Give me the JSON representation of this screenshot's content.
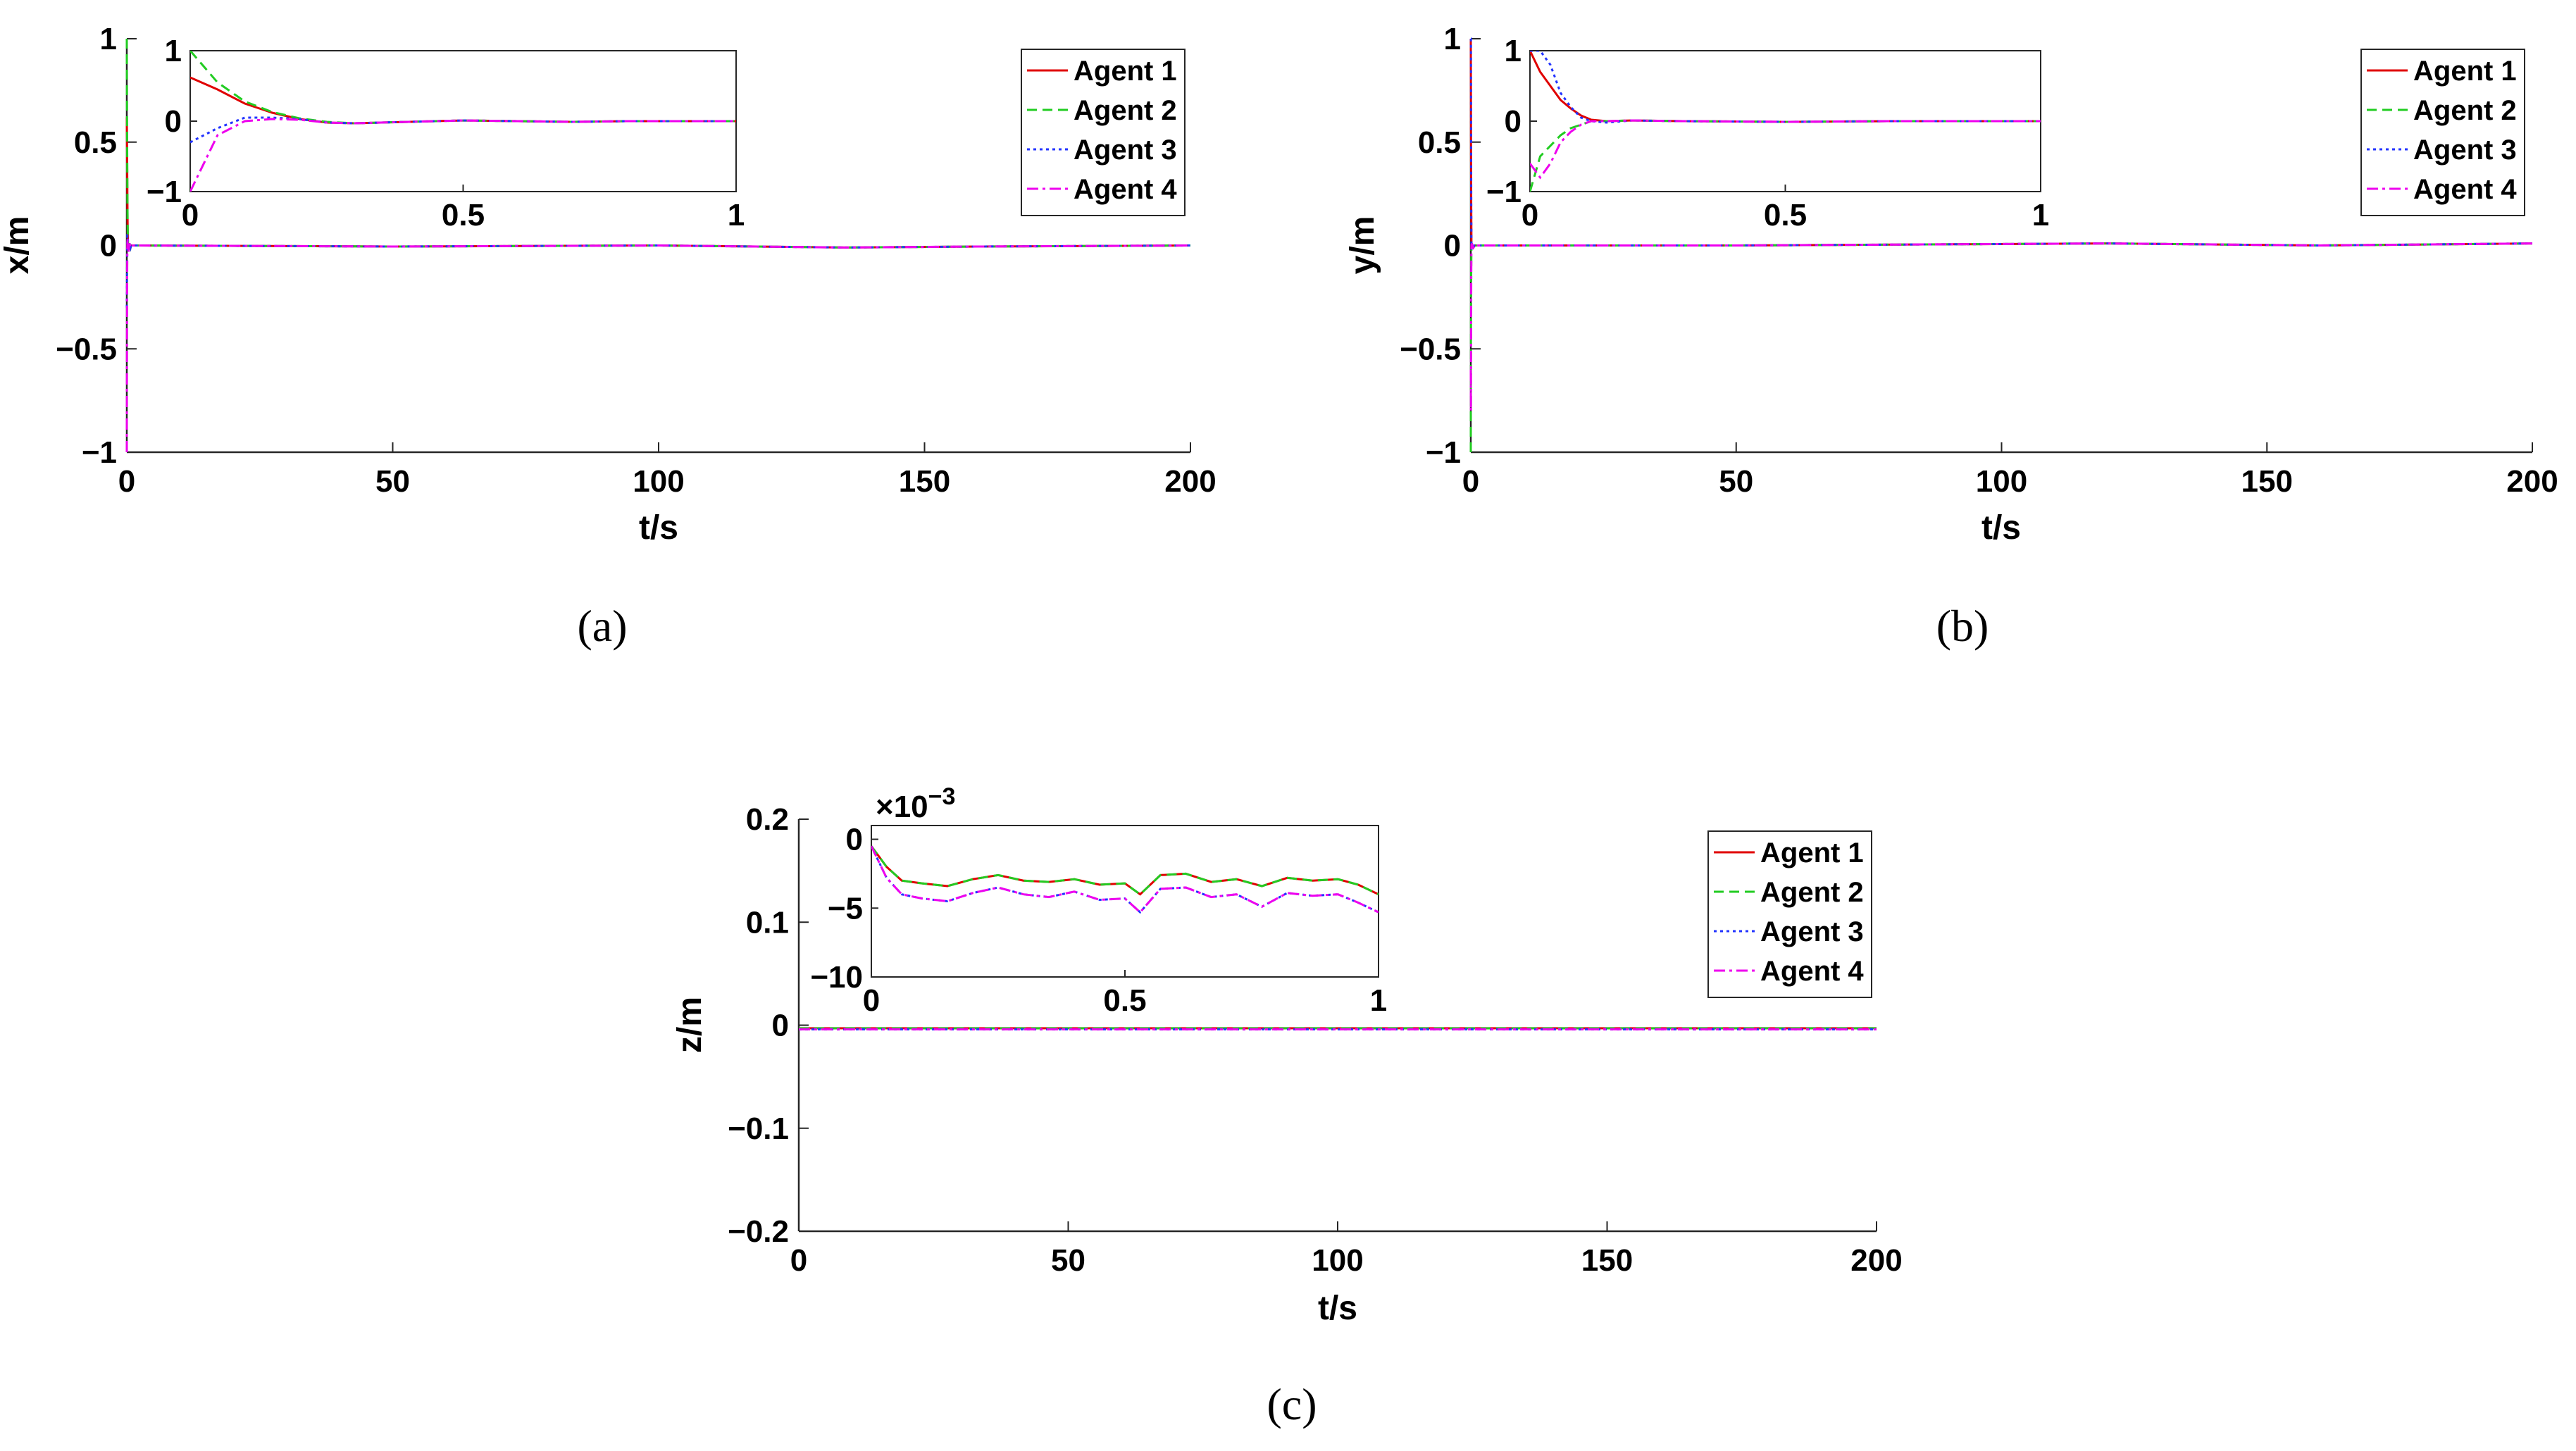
{
  "chart_data": [
    {
      "type": "line",
      "panel": "(a)",
      "ylabel": "x/m",
      "xlabel": "t/s",
      "xlim": [
        0,
        200
      ],
      "ylim": [
        -1,
        1
      ],
      "xticks": [
        "0",
        "50",
        "100",
        "150",
        "200"
      ],
      "yticks": [
        "−1",
        "−0.5",
        "0",
        "0.5",
        "1"
      ],
      "legend": {
        "position": "top-right",
        "entries": [
          "Agent 1",
          "Agent 2",
          "Agent 3",
          "Agent 4"
        ]
      },
      "series": [
        {
          "name": "Agent 1",
          "color": "#e00000",
          "style": "solid",
          "x": [
            0,
            0.05,
            0.1,
            0.15,
            0.2,
            0.25,
            0.3,
            0.4,
            0.5,
            0.6,
            0.7,
            0.8,
            0.9,
            1,
            2,
            50,
            100,
            135,
            160,
            200
          ],
          "y": [
            0.62,
            0.45,
            0.25,
            0.12,
            0.03,
            -0.02,
            -0.03,
            -0.01,
            0.01,
            0.0,
            -0.01,
            0.0,
            0.0,
            0.0,
            0.0,
            -0.005,
            0.0,
            -0.01,
            -0.005,
            0.0
          ]
        },
        {
          "name": "Agent 2",
          "color": "#22cc22",
          "style": "dashed",
          "x": [
            0,
            0.05,
            0.1,
            0.15,
            0.2,
            0.25,
            0.3,
            0.4,
            0.5,
            0.6,
            0.7,
            0.8,
            0.9,
            1,
            2,
            50,
            100,
            135,
            160,
            200
          ],
          "y": [
            1.0,
            0.55,
            0.28,
            0.13,
            0.04,
            -0.01,
            -0.03,
            -0.01,
            0.01,
            0.0,
            -0.01,
            0.0,
            0.0,
            0.0,
            0.0,
            -0.005,
            0.0,
            -0.01,
            -0.005,
            0.0
          ]
        },
        {
          "name": "Agent 3",
          "color": "#2233ff",
          "style": "dotted",
          "x": [
            0,
            0.05,
            0.1,
            0.15,
            0.2,
            0.25,
            0.3,
            0.4,
            0.5,
            0.6,
            0.7,
            0.8,
            0.9,
            1,
            2,
            50,
            100,
            135,
            160,
            200
          ],
          "y": [
            -0.3,
            -0.1,
            0.05,
            0.05,
            0.03,
            -0.02,
            -0.03,
            -0.01,
            0.01,
            0.0,
            -0.01,
            0.0,
            0.0,
            0.0,
            0.0,
            -0.005,
            0.0,
            -0.01,
            -0.005,
            0.0
          ]
        },
        {
          "name": "Agent 4",
          "color": "#ee00ee",
          "style": "dashdot",
          "x": [
            0,
            0.05,
            0.1,
            0.15,
            0.2,
            0.25,
            0.3,
            0.4,
            0.5,
            0.6,
            0.7,
            0.8,
            0.9,
            1,
            2,
            50,
            100,
            135,
            160,
            200
          ],
          "y": [
            -1.0,
            -0.2,
            0.0,
            0.03,
            0.02,
            -0.02,
            -0.03,
            -0.01,
            0.01,
            0.0,
            -0.01,
            0.0,
            0.0,
            0.0,
            0.0,
            -0.005,
            0.0,
            -0.01,
            -0.005,
            0.0
          ]
        }
      ],
      "inset": {
        "xlim": [
          0,
          1
        ],
        "ylim": [
          -1,
          1
        ],
        "xticks": [
          "0",
          "0.5",
          "1"
        ],
        "yticks": [
          "−1",
          "0",
          "1"
        ]
      }
    },
    {
      "type": "line",
      "panel": "(b)",
      "ylabel": "y/m",
      "xlabel": "t/s",
      "xlim": [
        0,
        200
      ],
      "ylim": [
        -1,
        1
      ],
      "xticks": [
        "0",
        "50",
        "100",
        "150",
        "200"
      ],
      "yticks": [
        "−1",
        "−0.5",
        "0",
        "0.5",
        "1"
      ],
      "legend": {
        "position": "top-right",
        "entries": [
          "Agent 1",
          "Agent 2",
          "Agent 3",
          "Agent 4"
        ]
      },
      "series": [
        {
          "name": "Agent 1",
          "color": "#e00000",
          "style": "solid",
          "x": [
            0,
            0.02,
            0.04,
            0.06,
            0.08,
            0.1,
            0.12,
            0.15,
            0.2,
            0.3,
            0.5,
            0.7,
            1,
            2,
            50,
            120,
            160,
            200
          ],
          "y": [
            1.0,
            0.7,
            0.5,
            0.3,
            0.18,
            0.08,
            0.02,
            0.0,
            0.01,
            0.0,
            -0.01,
            0.0,
            0.0,
            0.0,
            0.0,
            0.01,
            0.0,
            0.01
          ]
        },
        {
          "name": "Agent 2",
          "color": "#22cc22",
          "style": "dashed",
          "x": [
            0,
            0.02,
            0.04,
            0.06,
            0.08,
            0.1,
            0.12,
            0.15,
            0.2,
            0.3,
            0.5,
            0.7,
            1,
            2,
            50,
            120,
            160,
            200
          ],
          "y": [
            -1.0,
            -0.5,
            -0.35,
            -0.2,
            -0.1,
            -0.05,
            0.0,
            0.0,
            0.01,
            0.0,
            -0.01,
            0.0,
            0.0,
            0.0,
            0.0,
            0.01,
            0.0,
            0.01
          ]
        },
        {
          "name": "Agent 3",
          "color": "#2233ff",
          "style": "dotted",
          "x": [
            0,
            0.02,
            0.04,
            0.06,
            0.08,
            0.1,
            0.12,
            0.15,
            0.2,
            0.3,
            0.5,
            0.7,
            1,
            2,
            50,
            120,
            160,
            200
          ],
          "y": [
            1.0,
            1.0,
            0.8,
            0.4,
            0.2,
            0.05,
            0.0,
            -0.02,
            0.01,
            0.0,
            -0.01,
            0.0,
            0.0,
            0.0,
            0.0,
            0.01,
            0.0,
            0.01
          ]
        },
        {
          "name": "Agent 4",
          "color": "#ee00ee",
          "style": "dashdot",
          "x": [
            0,
            0.02,
            0.04,
            0.06,
            0.08,
            0.1,
            0.12,
            0.15,
            0.2,
            0.3,
            0.5,
            0.7,
            1,
            2,
            50,
            120,
            160,
            200
          ],
          "y": [
            -0.6,
            -0.8,
            -0.6,
            -0.3,
            -0.15,
            -0.05,
            0.0,
            0.0,
            0.01,
            0.0,
            -0.01,
            0.0,
            0.0,
            0.0,
            0.0,
            0.01,
            0.0,
            0.01
          ]
        }
      ],
      "inset": {
        "xlim": [
          0,
          1
        ],
        "ylim": [
          -1,
          1
        ],
        "xticks": [
          "0",
          "0.5",
          "1"
        ],
        "yticks": [
          "−1",
          "0",
          "1"
        ]
      }
    },
    {
      "type": "line",
      "panel": "(c)",
      "ylabel": "z/m",
      "xlabel": "t/s",
      "xlim": [
        0,
        200
      ],
      "ylim": [
        -0.2,
        0.2
      ],
      "xticks": [
        "0",
        "50",
        "100",
        "150",
        "200"
      ],
      "yticks": [
        "−0.2",
        "−0.1",
        "0",
        "0.1",
        "0.2"
      ],
      "legend": {
        "position": "top-right",
        "entries": [
          "Agent 1",
          "Agent 2",
          "Agent 3",
          "Agent 4"
        ]
      },
      "series": [
        {
          "name": "Agent 1",
          "color": "#e00000",
          "style": "solid",
          "x": [
            0,
            200
          ],
          "y": [
            -0.003,
            -0.003
          ]
        },
        {
          "name": "Agent 2",
          "color": "#22cc22",
          "style": "dashed",
          "x": [
            0,
            200
          ],
          "y": [
            -0.003,
            -0.003
          ]
        },
        {
          "name": "Agent 3",
          "color": "#2233ff",
          "style": "dotted",
          "x": [
            0,
            200
          ],
          "y": [
            -0.004,
            -0.004
          ]
        },
        {
          "name": "Agent 4",
          "color": "#ee00ee",
          "style": "dashdot",
          "x": [
            0,
            200
          ],
          "y": [
            -0.004,
            -0.004
          ]
        }
      ],
      "inset": {
        "xlim": [
          0,
          1
        ],
        "ylim": [
          -10,
          1
        ],
        "multiplier": "×10",
        "multiplier_exp": "−3",
        "xticks": [
          "0",
          "0.5",
          "1"
        ],
        "yticks": [
          "−10",
          "−5",
          "0"
        ],
        "series": [
          {
            "name": "Agent 1",
            "color": "#e00000",
            "style": "solid",
            "x": [
              0,
              0.03,
              0.06,
              0.1,
              0.15,
              0.2,
              0.25,
              0.3,
              0.35,
              0.4,
              0.45,
              0.5,
              0.53,
              0.57,
              0.62,
              0.67,
              0.72,
              0.77,
              0.82,
              0.87,
              0.92,
              0.96,
              1.0
            ],
            "y": [
              -0.5,
              -2.0,
              -3.0,
              -3.2,
              -3.4,
              -2.9,
              -2.6,
              -3.0,
              -3.1,
              -2.9,
              -3.3,
              -3.2,
              -4.0,
              -2.6,
              -2.5,
              -3.1,
              -2.9,
              -3.4,
              -2.8,
              -3.0,
              -2.9,
              -3.3,
              -4.0
            ]
          },
          {
            "name": "Agent 2",
            "color": "#22cc22",
            "style": "dashed",
            "x": [
              0,
              0.03,
              0.06,
              0.1,
              0.15,
              0.2,
              0.25,
              0.3,
              0.35,
              0.4,
              0.45,
              0.5,
              0.53,
              0.57,
              0.62,
              0.67,
              0.72,
              0.77,
              0.82,
              0.87,
              0.92,
              0.96,
              1.0
            ],
            "y": [
              -0.5,
              -2.0,
              -3.0,
              -3.2,
              -3.4,
              -2.9,
              -2.6,
              -3.0,
              -3.1,
              -2.9,
              -3.3,
              -3.2,
              -4.0,
              -2.6,
              -2.5,
              -3.1,
              -2.9,
              -3.4,
              -2.8,
              -3.0,
              -2.9,
              -3.3,
              -4.0
            ]
          },
          {
            "name": "Agent 3",
            "color": "#2233ff",
            "style": "dotted",
            "x": [
              0,
              0.03,
              0.06,
              0.1,
              0.15,
              0.2,
              0.25,
              0.3,
              0.35,
              0.4,
              0.45,
              0.5,
              0.53,
              0.57,
              0.62,
              0.67,
              0.72,
              0.77,
              0.82,
              0.87,
              0.92,
              0.96,
              1.0
            ],
            "y": [
              -0.5,
              -2.8,
              -4.0,
              -4.3,
              -4.5,
              -3.9,
              -3.5,
              -4.0,
              -4.2,
              -3.8,
              -4.4,
              -4.3,
              -5.3,
              -3.6,
              -3.5,
              -4.2,
              -4.0,
              -4.9,
              -3.9,
              -4.1,
              -4.0,
              -4.6,
              -5.3
            ]
          },
          {
            "name": "Agent 4",
            "color": "#ee00ee",
            "style": "dashdot",
            "x": [
              0,
              0.03,
              0.06,
              0.1,
              0.15,
              0.2,
              0.25,
              0.3,
              0.35,
              0.4,
              0.45,
              0.5,
              0.53,
              0.57,
              0.62,
              0.67,
              0.72,
              0.77,
              0.82,
              0.87,
              0.92,
              0.96,
              1.0
            ],
            "y": [
              -0.5,
              -2.8,
              -4.0,
              -4.3,
              -4.5,
              -3.9,
              -3.5,
              -4.0,
              -4.2,
              -3.8,
              -4.4,
              -4.3,
              -5.3,
              -3.6,
              -3.5,
              -4.2,
              -4.0,
              -4.9,
              -3.9,
              -4.1,
              -4.0,
              -4.6,
              -5.3
            ]
          }
        ]
      }
    }
  ]
}
